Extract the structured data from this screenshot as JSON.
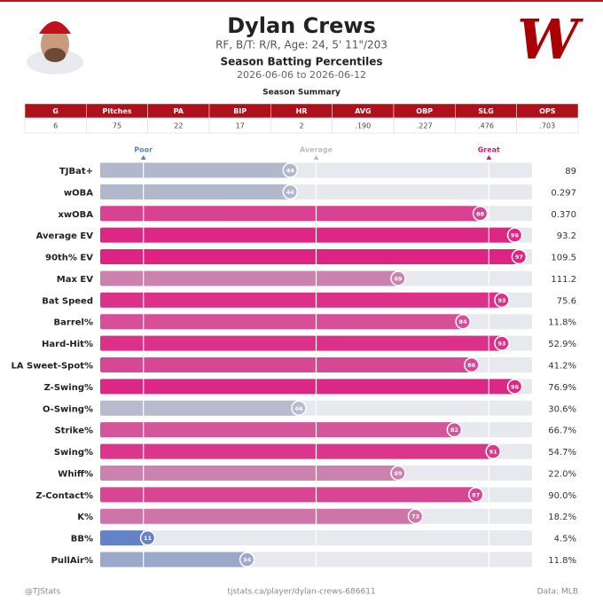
{
  "header": {
    "name": "Dylan Crews",
    "subtitle": "RF, B/T: R/R, Age: 24, 5' 11\"/203",
    "title": "Season Batting Percentiles",
    "dates": "2026-06-06 to 2026-06-12",
    "logo": "W"
  },
  "summary": {
    "title": "Season Summary",
    "headers": [
      "G",
      "Pitches",
      "PA",
      "BIP",
      "HR",
      "AVG",
      "OBP",
      "SLG",
      "OPS"
    ],
    "rows": [
      [
        "6",
        "75",
        "22",
        "17",
        "2",
        ".190",
        ".227",
        ".476",
        ".703"
      ]
    ]
  },
  "chart_data": {
    "type": "hbar",
    "categories": [
      "TJBat+",
      "wOBA",
      "xwOBA",
      "Average EV",
      "90th% EV",
      "Max EV",
      "Bat Speed",
      "Barrel%",
      "Hard-Hit%",
      "LA Sweet-Spot%",
      "Z-Swing%",
      "O-Swing%",
      "Strike%",
      "Swing%",
      "Whiff%",
      "Z-Contact%",
      "K%",
      "BB%",
      "PullAir%"
    ],
    "values": [
      44,
      44,
      88,
      96,
      97,
      69,
      93,
      84,
      93,
      86,
      96,
      46,
      82,
      91,
      69,
      87,
      73,
      11,
      34
    ],
    "stats": [
      "89",
      "0.297",
      "0.370",
      "93.2",
      "109.5",
      "111.2",
      "75.6",
      "11.8%",
      "52.9%",
      "41.2%",
      "76.9%",
      "30.6%",
      "66.7%",
      "54.7%",
      "22.0%",
      "90.0%",
      "18.2%",
      "4.5%",
      "11.8%"
    ],
    "xlim": [
      0,
      100
    ],
    "reference_lines": [
      {
        "value": 10,
        "label": "Poor",
        "color": "#5b7fc4"
      },
      {
        "value": 50,
        "label": "Average",
        "color": "#b8bcc8"
      },
      {
        "value": 90,
        "label": "Great",
        "color": "#d81b7a"
      }
    ],
    "colormap": [
      "#4a70c6",
      "#c0c2cc",
      "#e0197e"
    ]
  },
  "footer": {
    "left": "@TJStats",
    "center": "tjstats.ca/player/dylan-crews-686611",
    "right": "Data: MLB"
  }
}
